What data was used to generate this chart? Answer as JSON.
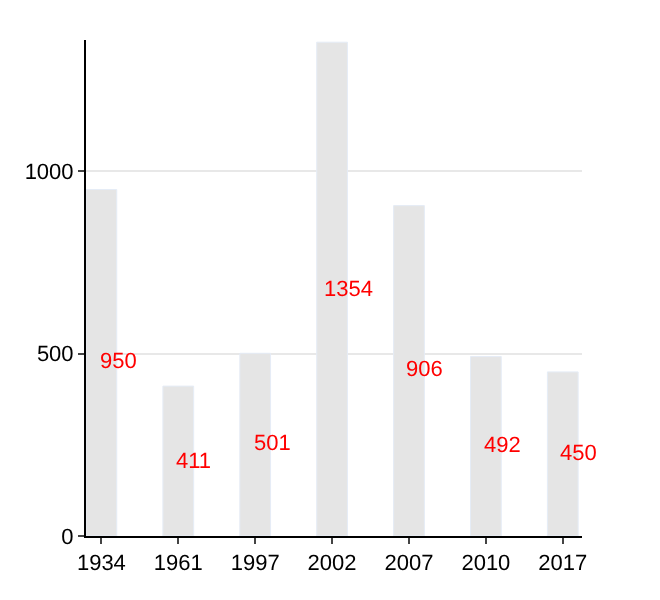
{
  "chart_data": {
    "type": "bar",
    "categories": [
      "1934",
      "1961",
      "1997",
      "2002",
      "2007",
      "2010",
      "2017"
    ],
    "values": [
      950,
      411,
      501,
      1354,
      906,
      492,
      450
    ],
    "color": "#e5e5e5",
    "data_labels": true,
    "grid": "y",
    "ylim": [
      0,
      1360
    ],
    "yticks": [
      0,
      500,
      1000
    ]
  }
}
